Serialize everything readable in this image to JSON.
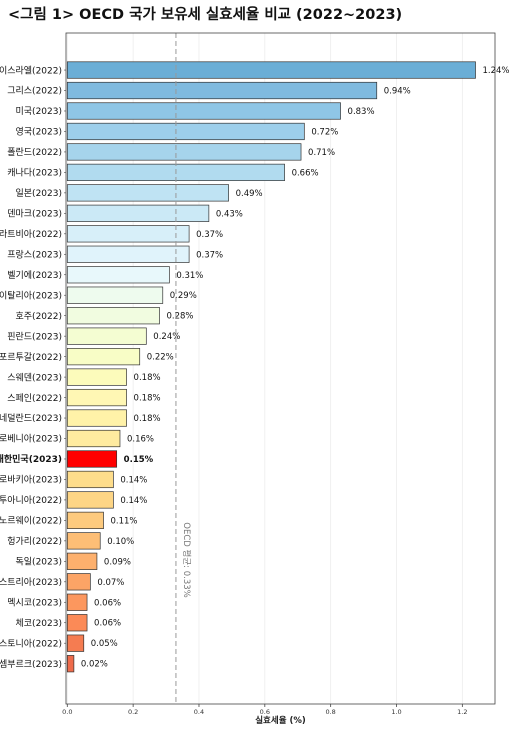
{
  "chart_data": {
    "type": "bar",
    "orientation": "horizontal",
    "title": "<그림 1> OECD 국가 보유세 실효세율 비교 (2022~2023)",
    "xlabel": "실효세율 (%)",
    "ylabel": "",
    "xlim": [
      0,
      1.3
    ],
    "xticks": [
      "0.0",
      "0.2",
      "0.4",
      "0.6",
      "0.8",
      "1.0",
      "1.2"
    ],
    "grid": true,
    "reference_line": {
      "value": 0.33,
      "label": "OECD 평균: 0.33%",
      "style": "dashed"
    },
    "highlight_category": "대한민국(2023)",
    "highlight_color": "#ff0000",
    "categories": [
      "이스라엘(2022)",
      "그리스(2022)",
      "미국(2023)",
      "영국(2023)",
      "폴란드(2022)",
      "캐나다(2023)",
      "일본(2023)",
      "덴마크(2023)",
      "라트비아(2022)",
      "프랑스(2023)",
      "벨기에(2023)",
      "이탈리아(2023)",
      "호주(2022)",
      "핀란드(2023)",
      "포르투갈(2022)",
      "스웨덴(2023)",
      "스페인(2022)",
      "네덜란드(2023)",
      "로베니아(2023)",
      "대한민국(2023)",
      "로바키아(2023)",
      "투아니아(2022)",
      "노르웨이(2022)",
      "헝가리(2022)",
      "독일(2023)",
      "스트리아(2023)",
      "멕시코(2023)",
      "체코(2023)",
      "스토니아(2022)",
      "셈부르크(2023)"
    ],
    "values": [
      1.24,
      0.94,
      0.83,
      0.72,
      0.71,
      0.66,
      0.49,
      0.43,
      0.37,
      0.37,
      0.31,
      0.29,
      0.28,
      0.24,
      0.22,
      0.18,
      0.18,
      0.18,
      0.16,
      0.15,
      0.14,
      0.14,
      0.11,
      0.1,
      0.09,
      0.07,
      0.06,
      0.06,
      0.05,
      0.02
    ],
    "value_labels": [
      "1.24%",
      "0.94%",
      "0.83%",
      "0.72%",
      "0.71%",
      "0.66%",
      "0.49%",
      "0.43%",
      "0.37%",
      "0.37%",
      "0.31%",
      "0.29%",
      "0.28%",
      "0.24%",
      "0.22%",
      "0.18%",
      "0.18%",
      "0.18%",
      "0.16%",
      "0.15%",
      "0.14%",
      "0.14%",
      "0.11%",
      "0.10%",
      "0.09%",
      "0.07%",
      "0.06%",
      "0.06%",
      "0.05%",
      "0.02%"
    ],
    "colors": [
      "#6baed6",
      "#7fbadf",
      "#8fc6e6",
      "#9dcfeb",
      "#a6d4ec",
      "#b1dbef",
      "#bfe3f3",
      "#cbe9f6",
      "#d7eff9",
      "#e0f3fb",
      "#e8f8fb",
      "#eefbee",
      "#f1fce0",
      "#f4fdd2",
      "#f8fdc6",
      "#fcfbbb",
      "#fff7b4",
      "#fff2a8",
      "#ffeb9f",
      "#ff0000",
      "#fedd8b",
      "#fdd585",
      "#fdca7e",
      "#fdbe76",
      "#fdb06d",
      "#fca466",
      "#fc975e",
      "#fb8a57",
      "#f57c51",
      "#ee6b4b"
    ]
  }
}
